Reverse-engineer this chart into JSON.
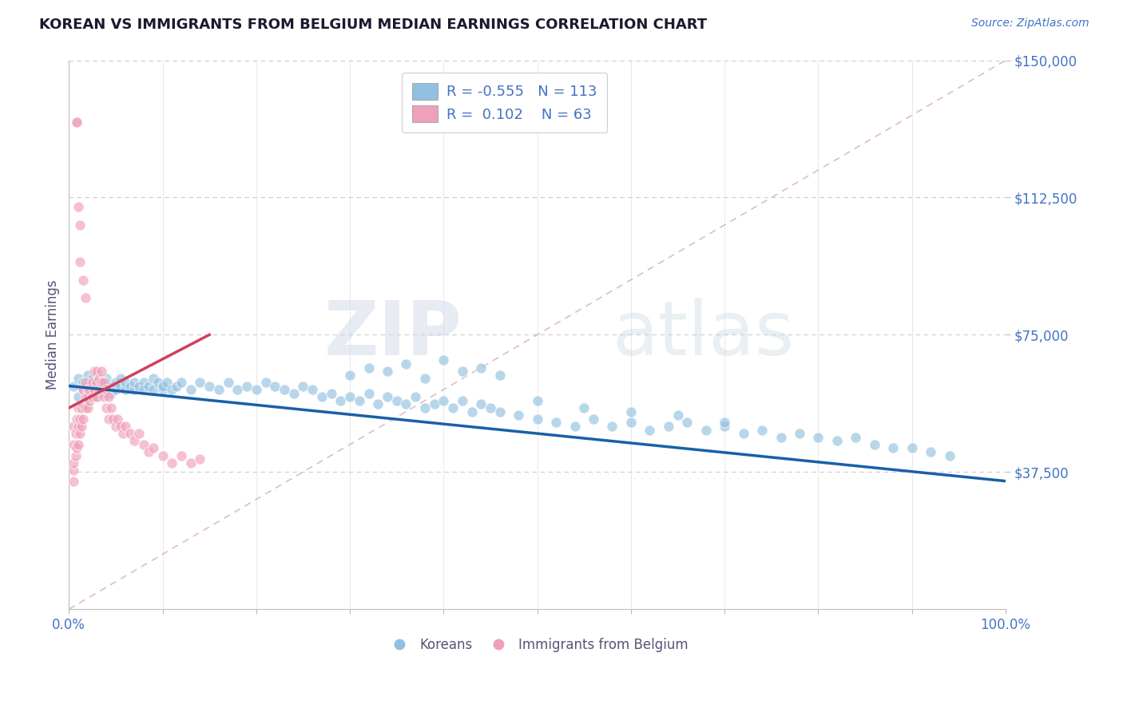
{
  "title": "KOREAN VS IMMIGRANTS FROM BELGIUM MEDIAN EARNINGS CORRELATION CHART",
  "source": "Source: ZipAtlas.com",
  "ylabel": "Median Earnings",
  "xlim": [
    0,
    1
  ],
  "ylim": [
    0,
    150000
  ],
  "yticks": [
    37500,
    75000,
    112500,
    150000
  ],
  "ytick_labels": [
    "$37,500",
    "$75,000",
    "$112,500",
    "$150,000"
  ],
  "xtick_labels": [
    "0.0%",
    "100.0%"
  ],
  "legend_r_blue": "-0.555",
  "legend_n_blue": "113",
  "legend_r_pink": "0.102",
  "legend_n_pink": "63",
  "legend_label_blue": "Koreans",
  "legend_label_pink": "Immigrants from Belgium",
  "watermark_zip": "ZIP",
  "watermark_atlas": "atlas",
  "blue_color": "#92c0e0",
  "blue_line_color": "#1a5fa8",
  "pink_color": "#f0a0b8",
  "pink_line_color": "#d04060",
  "title_color": "#1a1a2e",
  "axis_label_color": "#555577",
  "tick_color": "#4472c4",
  "legend_text_color": "#222222",
  "background_color": "#ffffff",
  "diag_color": "#d0a0b0",
  "blue_scatter_x": [
    0.005,
    0.01,
    0.01,
    0.015,
    0.015,
    0.02,
    0.02,
    0.02,
    0.025,
    0.025,
    0.03,
    0.03,
    0.03,
    0.035,
    0.035,
    0.04,
    0.04,
    0.04,
    0.045,
    0.045,
    0.05,
    0.05,
    0.055,
    0.055,
    0.06,
    0.06,
    0.065,
    0.07,
    0.07,
    0.075,
    0.08,
    0.08,
    0.085,
    0.09,
    0.09,
    0.095,
    0.1,
    0.1,
    0.105,
    0.11,
    0.115,
    0.12,
    0.13,
    0.14,
    0.15,
    0.16,
    0.17,
    0.18,
    0.19,
    0.2,
    0.21,
    0.22,
    0.23,
    0.24,
    0.25,
    0.26,
    0.27,
    0.28,
    0.29,
    0.3,
    0.31,
    0.32,
    0.33,
    0.34,
    0.35,
    0.36,
    0.37,
    0.38,
    0.39,
    0.4,
    0.41,
    0.42,
    0.43,
    0.44,
    0.45,
    0.46,
    0.48,
    0.5,
    0.52,
    0.54,
    0.56,
    0.58,
    0.6,
    0.62,
    0.64,
    0.66,
    0.68,
    0.7,
    0.72,
    0.74,
    0.76,
    0.78,
    0.8,
    0.82,
    0.84,
    0.86,
    0.88,
    0.9,
    0.92,
    0.94,
    0.3,
    0.32,
    0.34,
    0.36,
    0.38,
    0.4,
    0.42,
    0.44,
    0.46,
    0.5,
    0.55,
    0.6,
    0.65,
    0.7
  ],
  "blue_scatter_y": [
    61000,
    63000,
    58000,
    60000,
    62000,
    64000,
    59000,
    61000,
    60000,
    63000,
    62000,
    58000,
    60000,
    61000,
    59000,
    63000,
    60000,
    62000,
    61000,
    59000,
    60000,
    62000,
    61000,
    63000,
    60000,
    62000,
    61000,
    60000,
    62000,
    61000,
    62000,
    60000,
    61000,
    63000,
    60000,
    62000,
    60000,
    61000,
    62000,
    60000,
    61000,
    62000,
    60000,
    62000,
    61000,
    60000,
    62000,
    60000,
    61000,
    60000,
    62000,
    61000,
    60000,
    59000,
    61000,
    60000,
    58000,
    59000,
    57000,
    58000,
    57000,
    59000,
    56000,
    58000,
    57000,
    56000,
    58000,
    55000,
    56000,
    57000,
    55000,
    57000,
    54000,
    56000,
    55000,
    54000,
    53000,
    52000,
    51000,
    50000,
    52000,
    50000,
    51000,
    49000,
    50000,
    51000,
    49000,
    50000,
    48000,
    49000,
    47000,
    48000,
    47000,
    46000,
    47000,
    45000,
    44000,
    44000,
    43000,
    42000,
    64000,
    66000,
    65000,
    67000,
    63000,
    68000,
    65000,
    66000,
    64000,
    57000,
    55000,
    54000,
    53000,
    51000
  ],
  "pink_scatter_x": [
    0.005,
    0.005,
    0.005,
    0.005,
    0.005,
    0.007,
    0.007,
    0.008,
    0.008,
    0.01,
    0.01,
    0.01,
    0.012,
    0.012,
    0.013,
    0.013,
    0.015,
    0.015,
    0.015,
    0.018,
    0.018,
    0.018,
    0.02,
    0.02,
    0.02,
    0.022,
    0.022,
    0.025,
    0.025,
    0.027,
    0.027,
    0.03,
    0.03,
    0.03,
    0.032,
    0.032,
    0.035,
    0.035,
    0.037,
    0.037,
    0.04,
    0.04,
    0.042,
    0.042,
    0.045,
    0.047,
    0.05,
    0.052,
    0.055,
    0.058,
    0.06,
    0.065,
    0.07,
    0.075,
    0.08,
    0.085,
    0.09,
    0.1,
    0.11,
    0.12,
    0.13,
    0.14,
    0.008
  ],
  "pink_scatter_y": [
    35000,
    38000,
    40000,
    45000,
    50000,
    42000,
    48000,
    44000,
    52000,
    45000,
    50000,
    55000,
    48000,
    52000,
    50000,
    55000,
    52000,
    56000,
    60000,
    55000,
    58000,
    62000,
    60000,
    55000,
    58000,
    60000,
    57000,
    62000,
    58000,
    60000,
    65000,
    62000,
    58000,
    65000,
    60000,
    63000,
    62000,
    65000,
    58000,
    62000,
    60000,
    55000,
    58000,
    52000,
    55000,
    52000,
    50000,
    52000,
    50000,
    48000,
    50000,
    48000,
    46000,
    48000,
    45000,
    43000,
    44000,
    42000,
    40000,
    42000,
    40000,
    41000,
    133000
  ],
  "pink_outliers_x": [
    0.008,
    0.01,
    0.012,
    0.012,
    0.015,
    0.018
  ],
  "pink_outliers_y": [
    133000,
    110000,
    95000,
    105000,
    90000,
    85000
  ]
}
